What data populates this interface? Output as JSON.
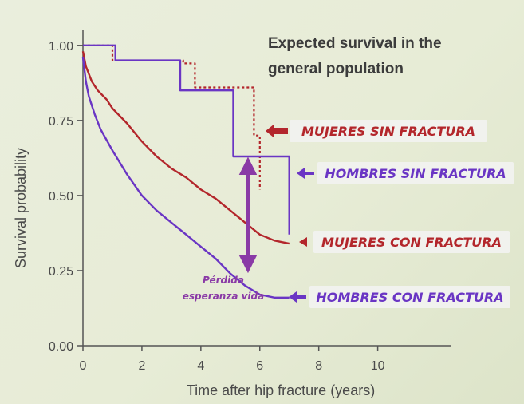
{
  "colors": {
    "women": "#b3262b",
    "men": "#6a35c4",
    "tag_bg": "#f1f2ee",
    "men_bright": "#8a3aa6",
    "axis": "#555555"
  },
  "chart_data": {
    "type": "line",
    "title": "Expected survival in the general population",
    "title_lines": [
      "Expected survival in the",
      "general population"
    ],
    "xlabel": "Time after hip fracture (years)",
    "ylabel": "Survival probability",
    "xlim": [
      0,
      12.5
    ],
    "ylim": [
      0,
      1.05
    ],
    "x_ticks": [
      0,
      2,
      4,
      6,
      8,
      10
    ],
    "y_ticks": [
      0.0,
      0.25,
      0.5,
      0.75,
      1.0
    ],
    "y_tick_labels": [
      "0.00",
      "0.25",
      "0.50",
      "0.75",
      "1.00"
    ],
    "grid": false,
    "series": [
      {
        "name": "MUJERES SIN FRACTURA",
        "style": "dotted",
        "color": "women",
        "x": [
          0,
          1.0,
          1.0,
          3.4,
          3.4,
          3.8,
          3.8,
          5.8,
          5.8,
          6.0,
          6.0
        ],
        "y": [
          1.0,
          1.0,
          0.95,
          0.95,
          0.94,
          0.94,
          0.86,
          0.86,
          0.7,
          0.7,
          0.52
        ]
      },
      {
        "name": "HOMBRES SIN FRACTURA",
        "style": "solid-step",
        "color": "men",
        "x": [
          0,
          1.1,
          1.1,
          3.3,
          3.3,
          5.1,
          5.1,
          7.0,
          7.0
        ],
        "y": [
          1.0,
          1.0,
          0.95,
          0.95,
          0.85,
          0.85,
          0.63,
          0.63,
          0.37
        ]
      },
      {
        "name": "MUJERES CON FRACTURA",
        "style": "solid",
        "color": "women",
        "x": [
          0,
          0.1,
          0.3,
          0.5,
          0.8,
          1.0,
          1.5,
          2.0,
          2.5,
          3.0,
          3.5,
          4.0,
          4.5,
          5.0,
          5.5,
          6.0,
          6.5,
          7.0
        ],
        "y": [
          0.98,
          0.93,
          0.88,
          0.85,
          0.82,
          0.79,
          0.74,
          0.68,
          0.63,
          0.59,
          0.56,
          0.52,
          0.49,
          0.45,
          0.41,
          0.37,
          0.35,
          0.34
        ]
      },
      {
        "name": "HOMBRES CON FRACTURA",
        "style": "solid",
        "color": "men",
        "x": [
          0,
          0.1,
          0.2,
          0.4,
          0.6,
          1.0,
          1.5,
          2.0,
          2.5,
          3.0,
          3.5,
          4.0,
          4.5,
          5.0,
          5.5,
          6.0,
          6.5,
          7.0
        ],
        "y": [
          0.96,
          0.88,
          0.83,
          0.77,
          0.72,
          0.65,
          0.57,
          0.5,
          0.45,
          0.41,
          0.37,
          0.33,
          0.29,
          0.24,
          0.2,
          0.17,
          0.16,
          0.16
        ]
      }
    ],
    "annotation": {
      "label_lines": [
        "Pérdida",
        "esperanza vida"
      ],
      "x": 5.6,
      "y_from": 0.25,
      "y_to": 0.62
    }
  }
}
